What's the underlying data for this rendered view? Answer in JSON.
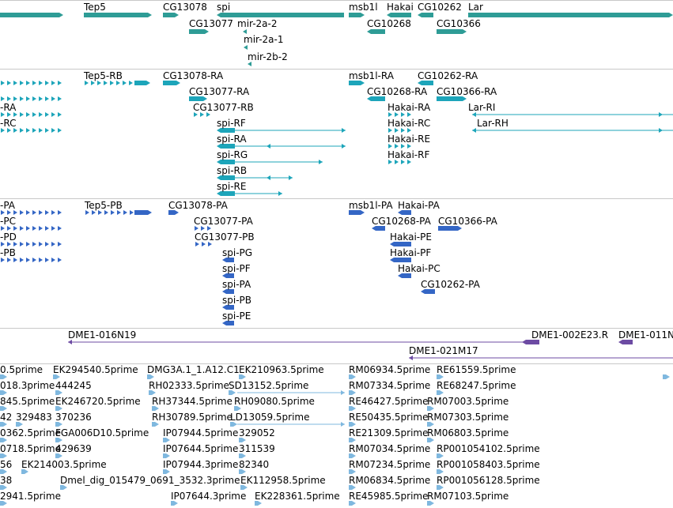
{
  "colors": {
    "gene": "#2e9c96",
    "transcript": "#1da5ba",
    "protein": "#3466c5",
    "clone": "#6d4ba3",
    "est": "#7fb8df",
    "separator": "#c8c8c8"
  },
  "tracks": {
    "genes": {
      "labels": [
        "Tep5",
        "CG13078",
        "spi",
        "msb1l",
        "Hakai",
        "CG10262",
        "Lar",
        "CG13077",
        "mir-2a-2",
        "CG10268",
        "CG10366",
        "mir-2a-1",
        "mir-2b-2"
      ]
    },
    "transcripts": {
      "labels": [
        "Tep5-RB",
        "CG13078-RA",
        "msb1l-RA",
        "CG10262-RA",
        "-RA",
        "CG13077-RA",
        "CG10268-RA",
        "CG10366-RA",
        "CG13077-RB",
        "Hakai-RA",
        "Lar-RI",
        "-RC",
        "spi-RF",
        "Hakai-RC",
        "Lar-RH",
        "spi-RA",
        "Hakai-RE",
        "spi-RG",
        "Hakai-RF",
        "spi-RB",
        "spi-RE"
      ]
    },
    "proteins": {
      "labels": [
        "-PA",
        "Tep5-PB",
        "CG13078-PA",
        "msb1l-PA",
        "Hakai-PA",
        "-PC",
        "CG13077-PA",
        "CG10268-PA",
        "CG10366-PA",
        "-PD",
        "CG13077-PB",
        "Hakai-PE",
        "-PB",
        "spi-PG",
        "Hakai-PF",
        "spi-PF",
        "Hakai-PC",
        "spi-PA",
        "CG10262-PA",
        "spi-PB",
        "spi-PE"
      ]
    },
    "clones": {
      "labels": [
        "DME1-016N19",
        "DME1-002E23.R",
        "DME1-011N",
        "DME1-021M17"
      ]
    },
    "ests": {
      "labels": [
        "0.5prime",
        "EK294540.5prime",
        "DMG3A.1_1.A12.C1",
        "EK210963.5prime",
        "RM06934.5prime",
        "RE61559.5prime",
        "018.3prime",
        "444245",
        "RH02333.5prime",
        "SD13152.5prime",
        "RM07334.5prime",
        "RE68247.5prime",
        "845.5prime",
        "EK246720.5prime",
        "RH37344.5prime",
        "RH09080.5prime",
        "RE46427.5prime",
        "RM07003.5prime",
        "42",
        "329483",
        "370236",
        "RH30789.5prime",
        "LD13059.5prime",
        "RE50435.5prime",
        "RM07303.5prime",
        "0362.5prime",
        "FGA006D10.5prime",
        "IP07944.5prime",
        "329052",
        "RE21309.5prime",
        "RM06803.5prime",
        "0718.5prime",
        "429639",
        "IP07644.5prime",
        "311539",
        "RM07034.5prime",
        "RP001054102.5prime",
        "56",
        "EK214003.5prime",
        "IP07944.3prime",
        "82340",
        "RM07234.5prime",
        "RP001058403.5prime",
        "38",
        "Dmel_dig_015479_0691_3532.3prime",
        "EK112958.5prime",
        "RM06834.5prime",
        "RP001056128.5prime",
        "2941.5prime",
        "IP07644.3prime",
        "EK228361.5prime",
        "RE45985.5prime",
        "RM07103.5prime"
      ]
    }
  }
}
